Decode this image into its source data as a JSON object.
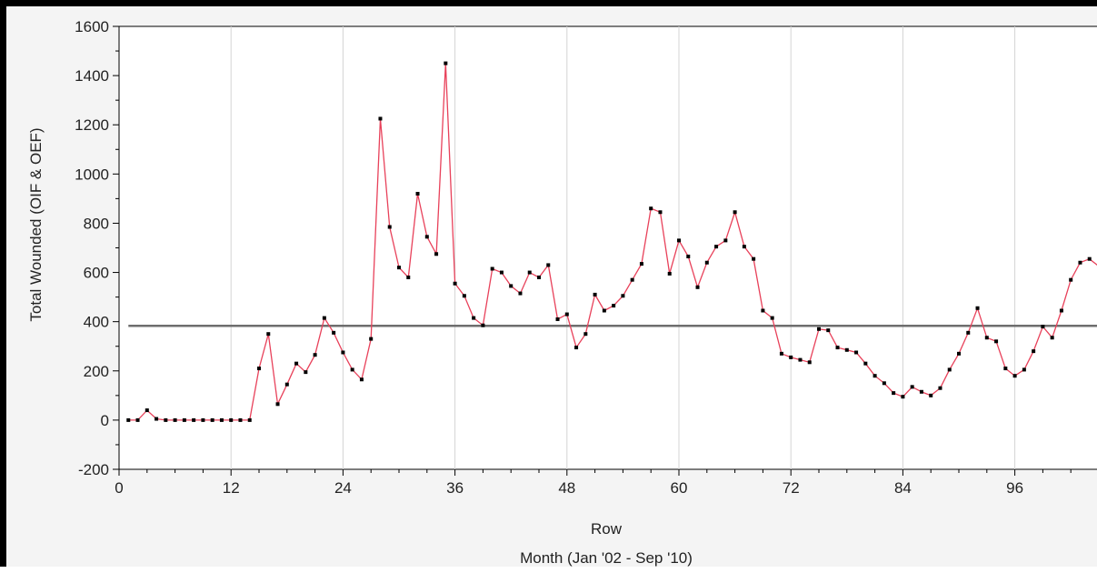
{
  "chart_data": {
    "type": "line",
    "title": "",
    "xlabel": "Row",
    "xlabel_sub": "Month (Jan '02 - Sep '10)",
    "ylabel": "Total Wounded (OIF & OEF)",
    "xlim": [
      0,
      105
    ],
    "ylim": [
      -200,
      1600
    ],
    "x_ticks": [
      0,
      12,
      24,
      36,
      48,
      60,
      72,
      84,
      96
    ],
    "x_tick_labels": [
      "0",
      "12",
      "24",
      "36",
      "48",
      "60",
      "72",
      "84",
      "96"
    ],
    "y_ticks": [
      -200,
      0,
      200,
      400,
      600,
      800,
      1000,
      1200,
      1400,
      1600
    ],
    "y_tick_labels": [
      "-200",
      "0",
      "200",
      "400",
      "600",
      "800",
      "1000",
      "1200",
      "1400",
      "1600"
    ],
    "grid": "vertical",
    "reference_line": {
      "y": 383,
      "color": "#6e6e6e"
    },
    "series": [
      {
        "color": "#e8415a",
        "marker_color": "#000000",
        "x": [
          1,
          2,
          3,
          4,
          5,
          6,
          7,
          8,
          9,
          10,
          11,
          12,
          13,
          14,
          15,
          16,
          17,
          18,
          19,
          20,
          21,
          22,
          23,
          24,
          25,
          26,
          27,
          28,
          29,
          30,
          31,
          32,
          33,
          34,
          35,
          36,
          37,
          38,
          39,
          40,
          41,
          42,
          43,
          44,
          45,
          46,
          47,
          48,
          49,
          50,
          51,
          52,
          53,
          54,
          55,
          56,
          57,
          58,
          59,
          60,
          61,
          62,
          63,
          64,
          65,
          66,
          67,
          68,
          69,
          70,
          71,
          72,
          73,
          74,
          75,
          76,
          77,
          78,
          79,
          80,
          81,
          82,
          83,
          84,
          85,
          86,
          87,
          88,
          89,
          90,
          91,
          92,
          93,
          94,
          95,
          96,
          97,
          98,
          99,
          100,
          101,
          102,
          103,
          104,
          105
        ],
        "y": [
          0,
          0,
          40,
          5,
          0,
          0,
          0,
          0,
          0,
          0,
          0,
          0,
          0,
          0,
          210,
          350,
          65,
          145,
          230,
          195,
          265,
          415,
          355,
          275,
          205,
          165,
          330,
          1225,
          785,
          620,
          580,
          920,
          745,
          675,
          1450,
          555,
          505,
          415,
          385,
          615,
          600,
          545,
          515,
          600,
          580,
          630,
          410,
          430,
          295,
          350,
          510,
          445,
          465,
          505,
          570,
          635,
          860,
          845,
          595,
          730,
          665,
          540,
          640,
          705,
          730,
          845,
          705,
          655,
          445,
          415,
          270,
          255,
          245,
          235,
          370,
          365,
          295,
          285,
          275,
          230,
          180,
          150,
          110,
          95,
          135,
          115,
          100,
          130,
          205,
          270,
          355,
          455,
          335,
          320,
          210,
          180,
          205,
          280,
          380,
          335,
          445,
          570,
          640,
          655,
          625
        ]
      }
    ]
  }
}
